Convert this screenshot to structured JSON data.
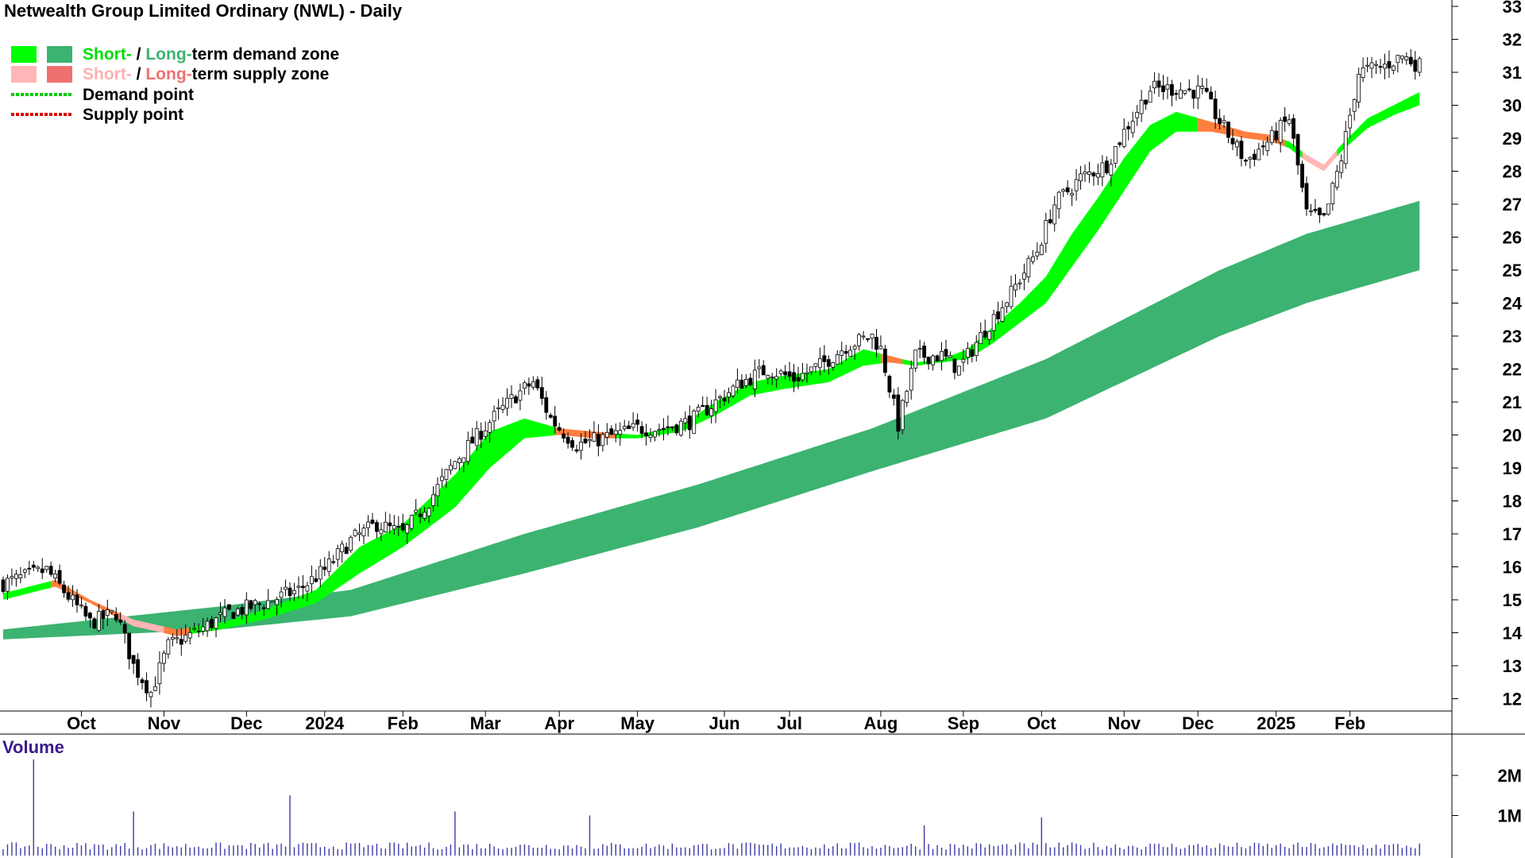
{
  "title": "Netwealth Group Limited Ordinary (NWL) - Daily",
  "legend": {
    "row1_short": "Short-",
    "row1_sep": " / ",
    "row1_long": "Long-",
    "row1_rest": "term demand zone",
    "row2_short": "Short-",
    "row2_sep": " / ",
    "row2_long": "Long-",
    "row2_rest": "term supply zone",
    "row3": "Demand point",
    "row4": "Supply point"
  },
  "volume_label": "Volume",
  "colors": {
    "short_demand": "#00ff00",
    "long_demand": "#3cb371",
    "short_supply": "#ffb6b6",
    "long_supply": "#f07070",
    "overlap_supply": "#ff7f3f",
    "demand_point": "#00cc00",
    "supply_point": "#dd0000",
    "volume": "#3a3aa8"
  },
  "chart_data": {
    "type": "candlestick",
    "title": "Netwealth Group Limited Ordinary (NWL) - Daily",
    "y_axis": {
      "min": 11.5,
      "max": 33,
      "ticks": [
        12,
        13,
        14,
        15,
        16,
        17,
        18,
        19,
        20,
        21,
        22,
        23,
        24,
        25,
        26,
        27,
        28,
        29,
        30,
        31,
        32,
        33
      ],
      "position": "right"
    },
    "x_axis": {
      "labels": [
        "Oct",
        "Nov",
        "Dec",
        "2024",
        "Feb",
        "Mar",
        "Apr",
        "May",
        "Jun",
        "Jul",
        "Aug",
        "Sep",
        "Oct",
        "Nov",
        "Dec",
        "2025",
        "Feb"
      ],
      "label_index": [
        18,
        37,
        56,
        74,
        92,
        111,
        128,
        146,
        166,
        181,
        202,
        221,
        239,
        258,
        275,
        293,
        310
      ]
    },
    "price_series": {
      "name": "Close (approx.)",
      "keypoints": [
        [
          0,
          15.5
        ],
        [
          10,
          15.9
        ],
        [
          20,
          14.3
        ],
        [
          26,
          14.6
        ],
        [
          30,
          13.0
        ],
        [
          34,
          12.2
        ],
        [
          38,
          13.6
        ],
        [
          44,
          14.0
        ],
        [
          52,
          14.6
        ],
        [
          60,
          14.9
        ],
        [
          68,
          15.3
        ],
        [
          74,
          15.9
        ],
        [
          80,
          16.8
        ],
        [
          86,
          17.3
        ],
        [
          92,
          17.0
        ],
        [
          98,
          18.0
        ],
        [
          104,
          19.2
        ],
        [
          112,
          20.4
        ],
        [
          118,
          21.2
        ],
        [
          122,
          21.6
        ],
        [
          126,
          20.5
        ],
        [
          128,
          20.2
        ],
        [
          132,
          19.7
        ],
        [
          138,
          19.9
        ],
        [
          146,
          20.2
        ],
        [
          152,
          20.2
        ],
        [
          158,
          20.4
        ],
        [
          164,
          21.0
        ],
        [
          170,
          21.6
        ],
        [
          176,
          22.0
        ],
        [
          182,
          21.7
        ],
        [
          188,
          22.1
        ],
        [
          194,
          22.7
        ],
        [
          200,
          23.0
        ],
        [
          202,
          22.6
        ],
        [
          206,
          20.3
        ],
        [
          210,
          22.4
        ],
        [
          216,
          22.4
        ],
        [
          220,
          22.0
        ],
        [
          226,
          23.2
        ],
        [
          232,
          24.3
        ],
        [
          238,
          25.6
        ],
        [
          242,
          27.0
        ],
        [
          248,
          27.8
        ],
        [
          254,
          28.2
        ],
        [
          258,
          29.2
        ],
        [
          264,
          30.5
        ],
        [
          270,
          30.5
        ],
        [
          276,
          30.4
        ],
        [
          280,
          29.5
        ],
        [
          286,
          28.3
        ],
        [
          292,
          29.0
        ],
        [
          296,
          29.6
        ],
        [
          300,
          26.7
        ],
        [
          304,
          26.5
        ],
        [
          308,
          28.4
        ],
        [
          312,
          31.0
        ],
        [
          318,
          31.2
        ],
        [
          322,
          31.5
        ],
        [
          326,
          31.2
        ]
      ]
    },
    "bands": [
      {
        "name": "Long-term zone",
        "keypoints_top": [
          [
            0,
            14.1
          ],
          [
            50,
            14.8
          ],
          [
            80,
            15.3
          ],
          [
            120,
            17.0
          ],
          [
            160,
            18.5
          ],
          [
            200,
            20.2
          ],
          [
            240,
            22.3
          ],
          [
            280,
            25.0
          ],
          [
            300,
            26.1
          ],
          [
            326,
            27.1
          ]
        ],
        "keypoints_bottom": [
          [
            0,
            13.8
          ],
          [
            50,
            14.1
          ],
          [
            80,
            14.5
          ],
          [
            120,
            15.8
          ],
          [
            160,
            17.2
          ],
          [
            200,
            18.9
          ],
          [
            240,
            20.5
          ],
          [
            280,
            23.0
          ],
          [
            300,
            24.0
          ],
          [
            326,
            25.0
          ]
        ]
      },
      {
        "name": "Short-term zone",
        "keypoints_top": [
          [
            0,
            15.2
          ],
          [
            12,
            15.6
          ],
          [
            20,
            15.0
          ],
          [
            30,
            14.4
          ],
          [
            40,
            14.1
          ],
          [
            50,
            14.3
          ],
          [
            60,
            14.7
          ],
          [
            72,
            15.3
          ],
          [
            82,
            16.6
          ],
          [
            92,
            17.3
          ],
          [
            104,
            18.8
          ],
          [
            112,
            20.1
          ],
          [
            120,
            20.5
          ],
          [
            128,
            20.2
          ],
          [
            136,
            20.1
          ],
          [
            146,
            20.0
          ],
          [
            156,
            20.3
          ],
          [
            164,
            21.0
          ],
          [
            172,
            21.6
          ],
          [
            180,
            21.8
          ],
          [
            190,
            22.0
          ],
          [
            198,
            22.6
          ],
          [
            204,
            22.4
          ],
          [
            210,
            22.2
          ],
          [
            216,
            22.3
          ],
          [
            222,
            22.6
          ],
          [
            228,
            23.3
          ],
          [
            234,
            24.0
          ],
          [
            240,
            24.8
          ],
          [
            246,
            26.1
          ],
          [
            252,
            27.2
          ],
          [
            258,
            28.4
          ],
          [
            264,
            29.4
          ],
          [
            270,
            29.8
          ],
          [
            278,
            29.5
          ],
          [
            286,
            29.2
          ],
          [
            292,
            29.1
          ],
          [
            296,
            28.9
          ],
          [
            300,
            28.5
          ],
          [
            304,
            28.2
          ],
          [
            308,
            28.8
          ],
          [
            314,
            29.6
          ],
          [
            320,
            30.0
          ],
          [
            326,
            30.4
          ]
        ],
        "keypoints_bottom": [
          [
            0,
            15.0
          ],
          [
            12,
            15.4
          ],
          [
            20,
            14.9
          ],
          [
            30,
            14.2
          ],
          [
            40,
            13.9
          ],
          [
            50,
            14.1
          ],
          [
            60,
            14.4
          ],
          [
            72,
            14.9
          ],
          [
            82,
            15.8
          ],
          [
            92,
            16.6
          ],
          [
            104,
            17.8
          ],
          [
            112,
            19.0
          ],
          [
            120,
            19.9
          ],
          [
            128,
            20.0
          ],
          [
            136,
            19.9
          ],
          [
            146,
            19.9
          ],
          [
            156,
            20.1
          ],
          [
            164,
            20.6
          ],
          [
            172,
            21.2
          ],
          [
            180,
            21.4
          ],
          [
            190,
            21.6
          ],
          [
            198,
            22.1
          ],
          [
            204,
            22.2
          ],
          [
            210,
            22.1
          ],
          [
            216,
            22.2
          ],
          [
            222,
            22.3
          ],
          [
            228,
            22.8
          ],
          [
            234,
            23.4
          ],
          [
            240,
            24.0
          ],
          [
            246,
            25.1
          ],
          [
            252,
            26.2
          ],
          [
            258,
            27.4
          ],
          [
            264,
            28.6
          ],
          [
            270,
            29.2
          ],
          [
            278,
            29.2
          ],
          [
            286,
            29.0
          ],
          [
            292,
            28.9
          ],
          [
            296,
            28.7
          ],
          [
            300,
            28.3
          ],
          [
            304,
            28.0
          ],
          [
            308,
            28.6
          ],
          [
            314,
            29.3
          ],
          [
            320,
            29.7
          ],
          [
            326,
            30.0
          ]
        ]
      }
    ],
    "volume": {
      "label": "Volume",
      "ticks": [
        {
          "label": "2M",
          "value": 2000000
        },
        {
          "label": "1M",
          "value": 1000000
        }
      ],
      "spikes": [
        [
          7,
          2400000
        ],
        [
          30,
          1100000
        ],
        [
          66,
          1500000
        ],
        [
          104,
          1100000
        ],
        [
          135,
          1000000
        ],
        [
          212,
          750000
        ],
        [
          239,
          950000
        ]
      ]
    }
  }
}
